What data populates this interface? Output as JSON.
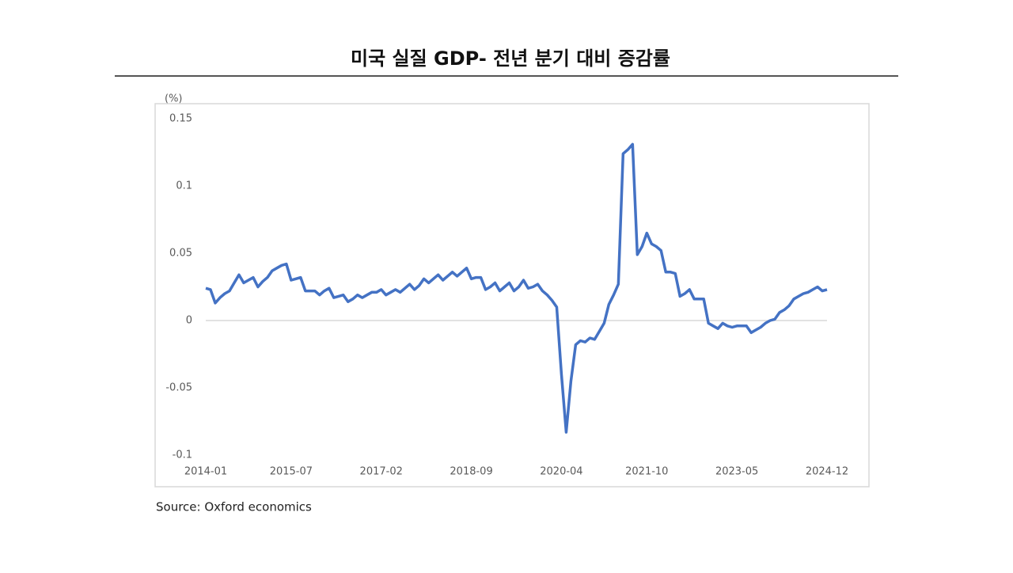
{
  "chart_data": {
    "type": "line",
    "title": "미국 실질 GDP- 전년 분기 대비 증감률",
    "y_axis_label": "(%)",
    "source": "Source: Oxford economics",
    "categories": [
      "2014-01",
      null,
      null,
      null,
      null,
      null,
      null,
      null,
      null,
      null,
      null,
      null,
      null,
      null,
      null,
      null,
      null,
      null,
      "2015-07",
      null,
      null,
      null,
      null,
      null,
      null,
      null,
      null,
      null,
      null,
      null,
      null,
      null,
      null,
      null,
      null,
      null,
      null,
      "2017-02",
      null,
      null,
      null,
      null,
      null,
      null,
      null,
      null,
      null,
      null,
      null,
      null,
      null,
      null,
      null,
      null,
      null,
      null,
      "2018-09",
      null,
      null,
      null,
      null,
      null,
      null,
      null,
      null,
      null,
      null,
      null,
      null,
      null,
      null,
      null,
      null,
      null,
      null,
      "2020-04",
      null,
      null,
      null,
      null,
      null,
      null,
      null,
      null,
      null,
      null,
      null,
      null,
      null,
      null,
      null,
      null,
      null,
      "2021-10",
      null,
      null,
      null,
      null,
      null,
      null,
      null,
      null,
      null,
      null,
      null,
      null,
      null,
      null,
      null,
      null,
      null,
      null,
      "2023-05",
      null,
      null,
      null,
      null,
      null,
      null,
      null,
      null,
      null,
      null,
      null,
      null,
      null,
      null,
      null,
      null,
      null,
      null,
      "2024-12"
    ],
    "series": [
      {
        "color": "#4472c4",
        "values": [
          0.024,
          0.023,
          0.013,
          0.017,
          0.02,
          0.022,
          0.028,
          0.034,
          0.028,
          0.03,
          0.032,
          0.025,
          0.029,
          0.032,
          0.037,
          0.039,
          0.041,
          0.042,
          0.03,
          0.031,
          0.032,
          0.022,
          0.022,
          0.022,
          0.019,
          0.022,
          0.024,
          0.017,
          0.018,
          0.019,
          0.014,
          0.016,
          0.019,
          0.017,
          0.019,
          0.021,
          0.021,
          0.023,
          0.019,
          0.021,
          0.023,
          0.021,
          0.024,
          0.027,
          0.023,
          0.026,
          0.031,
          0.028,
          0.031,
          0.034,
          0.03,
          0.033,
          0.036,
          0.033,
          0.036,
          0.039,
          0.031,
          0.032,
          0.032,
          0.023,
          0.025,
          0.028,
          0.022,
          0.025,
          0.028,
          0.022,
          0.025,
          0.03,
          0.024,
          0.025,
          0.027,
          0.022,
          0.019,
          0.015,
          0.01,
          -0.04,
          -0.083,
          -0.045,
          -0.018,
          -0.015,
          -0.016,
          -0.013,
          -0.014,
          -0.008,
          -0.002,
          0.012,
          0.019,
          0.027,
          0.124,
          0.127,
          0.131,
          0.049,
          0.055,
          0.065,
          0.057,
          0.055,
          0.052,
          0.036,
          0.036,
          0.035,
          0.018,
          0.02,
          0.023,
          0.016,
          0.016,
          0.016,
          -0.002,
          -0.004,
          -0.006,
          -0.002,
          -0.004,
          -0.005,
          -0.004,
          -0.004,
          -0.004,
          -0.009,
          -0.007,
          -0.005,
          -0.002,
          0.0,
          0.001,
          0.006,
          0.008,
          0.011,
          0.016,
          0.018,
          0.02,
          0.021,
          0.023,
          0.025,
          0.022,
          0.023
        ]
      }
    ],
    "ylim": [
      -0.1,
      0.15
    ],
    "yticks": [
      0.15,
      0.1,
      0.05,
      0,
      -0.05,
      -0.1
    ],
    "grid": false
  }
}
